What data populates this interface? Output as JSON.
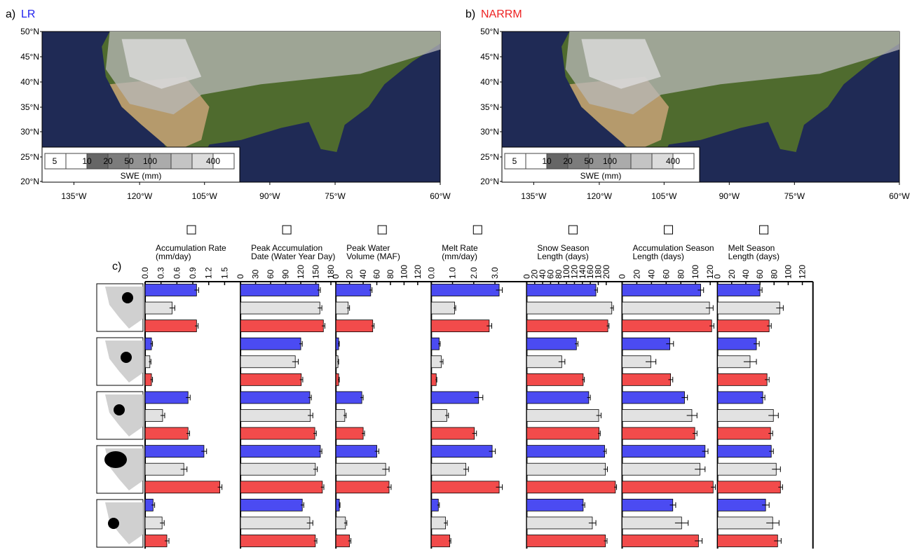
{
  "panel_a": {
    "label": "a)",
    "title": "LR"
  },
  "panel_b": {
    "label": "b)",
    "title": "NARRM"
  },
  "lat_labels": [
    "50°N",
    "45°N",
    "40°N",
    "35°N",
    "30°N",
    "25°N",
    "20°N"
  ],
  "lon_labels": [
    "135°W",
    "120°W",
    "105°W",
    "90°W",
    "75°W",
    "60°W"
  ],
  "colorbar": {
    "labels": [
      "5",
      "10",
      "20",
      "50",
      "100",
      "400"
    ],
    "title": "SWE (mm)"
  },
  "panel_c_label": "c)",
  "chart_data": [
    {
      "type": "hbar",
      "title_lines": [
        "Accumulation Rate",
        "(mm/day)"
      ],
      "xlim": [
        0,
        1.8
      ],
      "xticks": [
        {
          "value": 0,
          "label": "0.0"
        },
        0.3,
        0.6,
        0.9,
        1.2,
        1.5
      ],
      "series": [
        {
          "color": "#4b4bf2",
          "values": [
            0.97,
            0.12,
            0.81,
            1.11,
            0.15
          ],
          "errors": [
            0.04,
            0.02,
            0.04,
            0.05,
            0.03
          ]
        },
        {
          "color": "#e2e2e2",
          "values": [
            0.51,
            0.09,
            0.33,
            0.73,
            0.32
          ],
          "errors": [
            0.05,
            0.02,
            0.04,
            0.06,
            0.04
          ]
        },
        {
          "color": "#f24b4b",
          "values": [
            0.97,
            0.12,
            0.81,
            1.41,
            0.41
          ],
          "errors": [
            0.03,
            0.02,
            0.03,
            0.04,
            0.04
          ]
        }
      ]
    },
    {
      "type": "hbar",
      "title_lines": [
        "Peak Accumulation",
        "Date (Water Year Day)"
      ],
      "xlim": [
        0,
        190
      ],
      "xticks": [
        0,
        30,
        60,
        90,
        120,
        150,
        180
      ],
      "series": [
        {
          "color": "#4b4bf2",
          "values": [
            156,
            120,
            138,
            159,
            123
          ],
          "errors": [
            3,
            3,
            3,
            3,
            3
          ]
        },
        {
          "color": "#e2e2e2",
          "values": [
            158,
            109,
            139,
            149,
            138
          ],
          "errors": [
            4,
            6,
            5,
            4,
            6
          ]
        },
        {
          "color": "#f24b4b",
          "values": [
            165,
            121,
            148,
            163,
            149
          ],
          "errors": [
            3,
            3,
            3,
            3,
            3
          ]
        }
      ]
    },
    {
      "type": "hbar",
      "title_lines": [
        "Peak Water",
        "Volume (MAF)"
      ],
      "xlim": [
        0,
        140
      ],
      "xticks": [
        0,
        20,
        40,
        60,
        80,
        100,
        120
      ],
      "series": [
        {
          "color": "#4b4bf2",
          "values": [
            51,
            4,
            38,
            60,
            5
          ],
          "errors": [
            2,
            1,
            2,
            3,
            1
          ]
        },
        {
          "color": "#e2e2e2",
          "values": [
            18,
            3,
            13,
            73,
            14
          ],
          "errors": [
            2,
            1,
            2,
            5,
            2
          ]
        },
        {
          "color": "#f24b4b",
          "values": [
            54,
            4,
            40,
            78,
            20
          ],
          "errors": [
            2,
            1,
            2,
            3,
            2
          ]
        }
      ]
    },
    {
      "type": "hbar",
      "title_lines": [
        "Melt Rate",
        "(mm/day)"
      ],
      "xlim": [
        0,
        4.5
      ],
      "xticks": [
        {
          "value": 0,
          "label": "0.0"
        },
        {
          "value": 1,
          "label": "1.0"
        },
        {
          "value": 2,
          "label": "2.0"
        },
        {
          "value": 3,
          "label": "3.0"
        }
      ],
      "series": [
        {
          "color": "#4b4bf2",
          "values": [
            3.2,
            0.37,
            2.23,
            2.87,
            0.33
          ],
          "errors": [
            0.15,
            0.05,
            0.2,
            0.15,
            0.05
          ]
        },
        {
          "color": "#e2e2e2",
          "values": [
            1.1,
            0.47,
            0.73,
            1.63,
            0.67
          ],
          "errors": [
            0.05,
            0.08,
            0.08,
            0.12,
            0.08
          ]
        },
        {
          "color": "#f24b4b",
          "values": [
            2.73,
            0.23,
            2.03,
            3.2,
            0.87
          ],
          "errors": [
            0.12,
            0.03,
            0.1,
            0.15,
            0.05
          ]
        }
      ]
    },
    {
      "type": "hbar",
      "title_lines": [
        "Snow Season",
        "Length (days)"
      ],
      "xlim": [
        0,
        240
      ],
      "xticks": [
        0,
        20,
        40,
        60,
        80,
        100,
        120,
        140,
        160,
        180,
        200
      ],
      "series": [
        {
          "color": "#4b4bf2",
          "values": [
            174,
            125,
            156,
            196,
            142
          ],
          "errors": [
            4,
            4,
            4,
            4,
            4
          ]
        },
        {
          "color": "#e2e2e2",
          "values": [
            214,
            88,
            181,
            198,
            165
          ],
          "errors": [
            4,
            8,
            6,
            5,
            9
          ]
        },
        {
          "color": "#f24b4b",
          "values": [
            204,
            142,
            182,
            223,
            198
          ],
          "errors": [
            3,
            3,
            3,
            3,
            4
          ]
        }
      ]
    },
    {
      "type": "hbar",
      "title_lines": [
        "Accumulation Season",
        "Length (days)"
      ],
      "xlim": [
        0,
        130
      ],
      "xticks": [
        0,
        20,
        40,
        60,
        80,
        100,
        120
      ],
      "series": [
        {
          "color": "#4b4bf2",
          "values": [
            107,
            65,
            85,
            113,
            69
          ],
          "errors": [
            4,
            5,
            4,
            4,
            4
          ]
        },
        {
          "color": "#e2e2e2",
          "values": [
            119,
            39,
            95,
            106,
            81
          ],
          "errors": [
            5,
            7,
            7,
            7,
            9
          ]
        },
        {
          "color": "#f24b4b",
          "values": [
            122,
            66,
            99,
            124,
            104
          ],
          "errors": [
            3,
            3,
            3,
            3,
            5
          ]
        }
      ]
    },
    {
      "type": "hbar",
      "title_lines": [
        "Melt Season",
        "Length (days)"
      ],
      "xlim": [
        0,
        135
      ],
      "xticks": [
        0,
        20,
        40,
        60,
        80,
        100,
        120
      ],
      "series": [
        {
          "color": "#4b4bf2",
          "values": [
            60,
            55,
            64,
            76,
            68
          ],
          "errors": [
            3,
            4,
            3,
            3,
            5
          ]
        },
        {
          "color": "#e2e2e2",
          "values": [
            88,
            46,
            79,
            83,
            78
          ],
          "errors": [
            5,
            9,
            7,
            6,
            9
          ]
        },
        {
          "color": "#f24b4b",
          "values": [
            73,
            70,
            75,
            89,
            85
          ],
          "errors": [
            3,
            3,
            3,
            3,
            5
          ]
        }
      ]
    }
  ]
}
